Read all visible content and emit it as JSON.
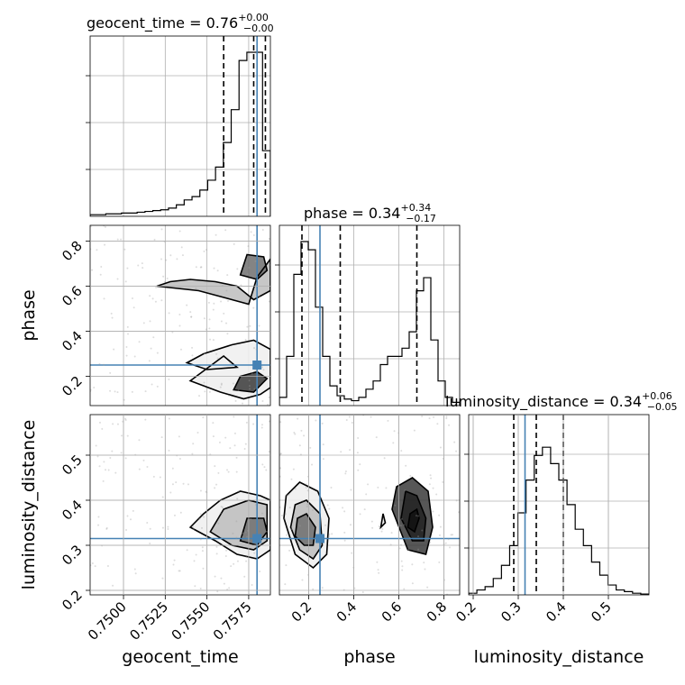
{
  "parameters": [
    "geocent_time",
    "phase",
    "luminosity_distance"
  ],
  "titles": {
    "geocent_time": {
      "label": "geocent_time = 0.76",
      "plus": "+0.00",
      "minus": "−0.00"
    },
    "phase": {
      "label": "phase = 0.34",
      "plus": "+0.34",
      "minus": "−0.17"
    },
    "luminosity_distance": {
      "label": "luminosity_distance = 0.34",
      "plus": "+0.06",
      "minus": "−0.05"
    }
  },
  "axis_labels": {
    "x_geocent_time": "geocent_time",
    "x_phase": "phase",
    "x_luminosity_distance": "luminosity_distance",
    "y_phase": "phase",
    "y_luminosity_distance": "luminosity_distance"
  },
  "colors": {
    "truth": "#4682b4",
    "contour": "#000000",
    "grid": "#b0b0b0"
  },
  "chart_data": {
    "type": "corner",
    "grid": true,
    "truths": {
      "geocent_time": 0.758,
      "phase": 0.25,
      "luminosity_distance": 0.315
    },
    "ranges": {
      "geocent_time": [
        0.748,
        0.7588
      ],
      "phase": [
        0.07,
        0.87
      ],
      "luminosity_distance": [
        0.19,
        0.59
      ]
    },
    "ticks": {
      "geocent_time": [
        "0.7500",
        "0.7525",
        "0.7550",
        "0.7575"
      ],
      "phase": [
        "0.2",
        "0.4",
        "0.6",
        "0.8"
      ],
      "luminosity_distance": [
        "0.2",
        "0.3",
        "0.4",
        "0.5"
      ]
    },
    "tick_values": {
      "geocent_time": [
        0.75,
        0.7525,
        0.755,
        0.7575
      ],
      "phase": [
        0.2,
        0.4,
        0.6,
        0.8
      ],
      "luminosity_distance": [
        0.2,
        0.3,
        0.4,
        0.5
      ]
    },
    "quantiles": {
      "geocent_time": [
        0.756,
        0.7578,
        0.7585
      ],
      "phase": [
        0.17,
        0.34,
        0.68
      ],
      "luminosity_distance": [
        0.29,
        0.34,
        0.4
      ]
    },
    "histograms": {
      "geocent_time": {
        "range": [
          0.748,
          0.7588
        ],
        "counts": [
          0.01,
          0.01,
          0.015,
          0.015,
          0.02,
          0.02,
          0.025,
          0.03,
          0.035,
          0.04,
          0.05,
          0.07,
          0.1,
          0.12,
          0.16,
          0.22,
          0.3,
          0.45,
          0.65,
          0.95,
          1.0,
          1.0,
          0.4
        ]
      },
      "phase": {
        "range": [
          0.07,
          0.87
        ],
        "counts": [
          0.05,
          0.3,
          0.8,
          1.0,
          0.95,
          0.6,
          0.3,
          0.12,
          0.06,
          0.04,
          0.03,
          0.05,
          0.1,
          0.15,
          0.25,
          0.3,
          0.3,
          0.35,
          0.45,
          0.7,
          0.78,
          0.4,
          0.15,
          0.05,
          0.02
        ]
      },
      "luminosity_distance": {
        "range": [
          0.19,
          0.59
        ],
        "counts": [
          0.01,
          0.03,
          0.05,
          0.1,
          0.18,
          0.3,
          0.5,
          0.7,
          0.85,
          0.9,
          0.8,
          0.7,
          0.55,
          0.4,
          0.3,
          0.2,
          0.12,
          0.06,
          0.03,
          0.02,
          0.01,
          0.005
        ]
      }
    },
    "pair_levels": {
      "phase_vs_geocent_time": [
        {
          "x": [
            0.754,
            0.7558,
            0.7572,
            0.7582,
            0.7588,
            0.7588,
            0.7578,
            0.7565,
            0.7548,
            0.7538,
            0.755,
            0.7568,
            0.756,
            0.754
          ],
          "y": [
            0.18,
            0.13,
            0.1,
            0.12,
            0.15,
            0.32,
            0.36,
            0.34,
            0.3,
            0.26,
            0.23,
            0.24,
            0.29,
            0.18
          ]
        },
        {
          "x": [
            0.752,
            0.7545,
            0.7565,
            0.7575,
            0.758,
            0.7588,
            0.7588,
            0.7578,
            0.7568,
            0.7555,
            0.754,
            0.7528,
            0.752
          ],
          "y": [
            0.6,
            0.58,
            0.54,
            0.52,
            0.64,
            0.72,
            0.58,
            0.54,
            0.6,
            0.62,
            0.63,
            0.62,
            0.6
          ]
        },
        {
          "x": [
            0.757,
            0.758,
            0.7586,
            0.7584,
            0.7574,
            0.757
          ],
          "y": [
            0.65,
            0.63,
            0.67,
            0.73,
            0.74,
            0.65
          ]
        },
        {
          "x": [
            0.7566,
            0.7578,
            0.7586,
            0.758,
            0.757,
            0.7566
          ],
          "y": [
            0.14,
            0.13,
            0.19,
            0.22,
            0.2,
            0.14
          ]
        }
      ],
      "luminosity_distance_vs_geocent_time": [
        {
          "x": [
            0.754,
            0.7555,
            0.7568,
            0.758,
            0.7588,
            0.7588,
            0.7582,
            0.757,
            0.7558,
            0.7548,
            0.754
          ],
          "y": [
            0.34,
            0.31,
            0.28,
            0.27,
            0.29,
            0.4,
            0.41,
            0.42,
            0.4,
            0.37,
            0.34
          ]
        },
        {
          "x": [
            0.7552,
            0.7565,
            0.7578,
            0.7586,
            0.7586,
            0.7575,
            0.756,
            0.7552
          ],
          "y": [
            0.33,
            0.3,
            0.29,
            0.31,
            0.39,
            0.4,
            0.38,
            0.33
          ]
        },
        {
          "x": [
            0.757,
            0.758,
            0.7586,
            0.7584,
            0.7574,
            0.757
          ],
          "y": [
            0.31,
            0.3,
            0.33,
            0.36,
            0.36,
            0.31
          ]
        }
      ],
      "luminosity_distance_vs_phase": [
        {
          "x": [
            0.09,
            0.14,
            0.22,
            0.28,
            0.29,
            0.24,
            0.16,
            0.1,
            0.09
          ],
          "y": [
            0.36,
            0.28,
            0.25,
            0.28,
            0.36,
            0.42,
            0.44,
            0.41,
            0.36
          ]
        },
        {
          "x": [
            0.12,
            0.16,
            0.22,
            0.26,
            0.25,
            0.19,
            0.14,
            0.12
          ],
          "y": [
            0.34,
            0.29,
            0.27,
            0.3,
            0.37,
            0.4,
            0.39,
            0.34
          ]
        },
        {
          "x": [
            0.14,
            0.18,
            0.22,
            0.23,
            0.19,
            0.15,
            0.14
          ],
          "y": [
            0.32,
            0.3,
            0.3,
            0.34,
            0.37,
            0.36,
            0.32
          ]
        },
        {
          "x": [
            0.57,
            0.64,
            0.72,
            0.75,
            0.73,
            0.66,
            0.59,
            0.57
          ],
          "y": [
            0.38,
            0.29,
            0.28,
            0.34,
            0.42,
            0.45,
            0.43,
            0.38
          ]
        },
        {
          "x": [
            0.61,
            0.66,
            0.71,
            0.72,
            0.68,
            0.63,
            0.61
          ],
          "y": [
            0.36,
            0.31,
            0.31,
            0.36,
            0.41,
            0.42,
            0.36
          ]
        },
        {
          "x": [
            0.64,
            0.67,
            0.69,
            0.68,
            0.65,
            0.64
          ],
          "y": [
            0.34,
            0.33,
            0.36,
            0.38,
            0.37,
            0.34
          ]
        },
        {
          "x": [
            0.52,
            0.54,
            0.53,
            0.52
          ],
          "y": [
            0.34,
            0.35,
            0.37,
            0.34
          ]
        }
      ]
    }
  }
}
